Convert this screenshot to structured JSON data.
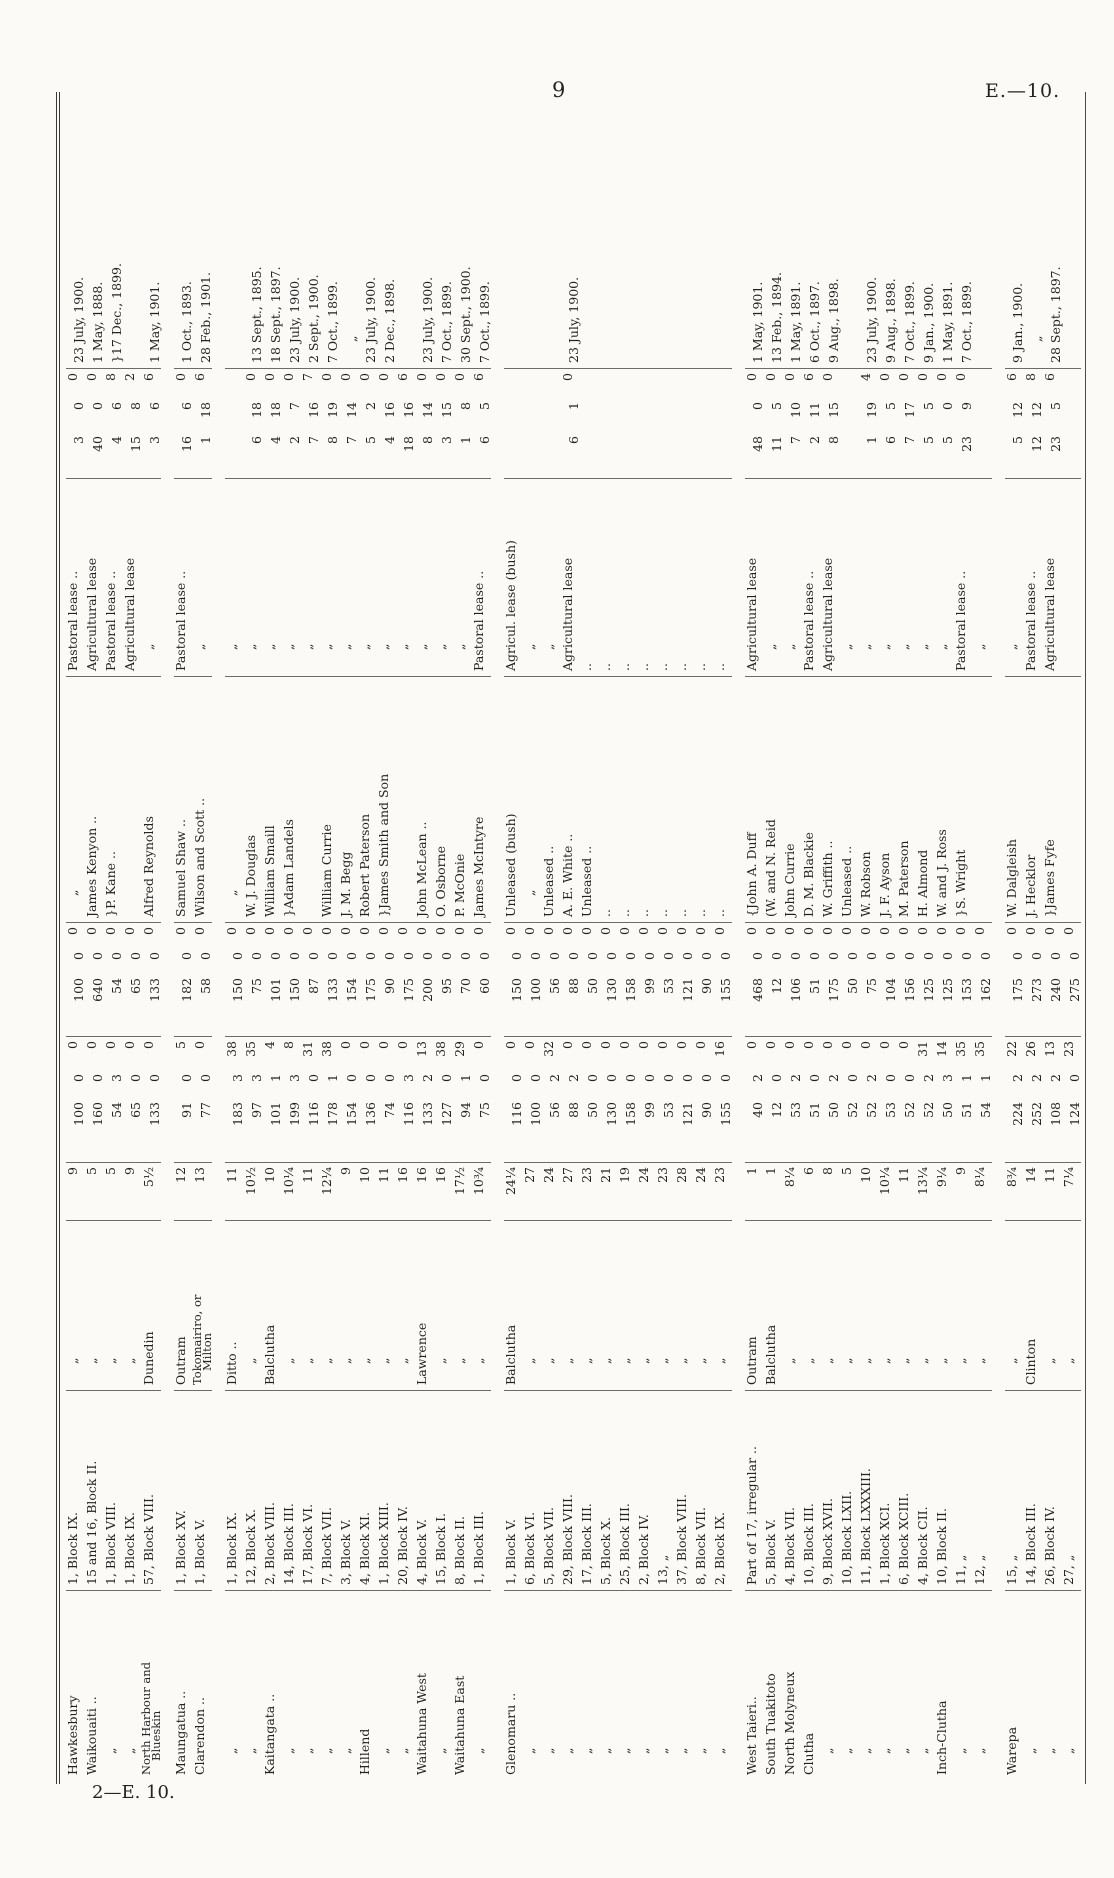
{
  "meta": {
    "page_number": "9",
    "doc_code": "E.—10.",
    "signature_line": "2—E. 10."
  },
  "table": {
    "rows": [
      {
        "d": "Hawkesbury",
        "s": "1, Block IX.",
        "l": "„",
        "di": "9",
        "aa": "100",
        "ar": "0",
        "ap": "0",
        "va": "100",
        "vs": "0",
        "vd": "0",
        "n": "„",
        "t": "Pastoral lease ..",
        "rl": "3",
        "rs": "0",
        "rd": "0",
        "dt": "23 July, 1900.",
        "gap": false
      },
      {
        "d": "Waikouaiti ..",
        "s": "15 and 16, Block II.",
        "l": "„",
        "di": "5",
        "aa": "160",
        "ar": "0",
        "ap": "0",
        "va": "640",
        "vs": "0",
        "vd": "0",
        "n": "James Kenyon ..",
        "t": "Agricultural lease",
        "rl": "40",
        "rs": "0",
        "rd": "0",
        "dt": "1 May, 1888.",
        "gap": false
      },
      {
        "d": "„",
        "s": "1, Block VIII.",
        "l": "„",
        "di": "5",
        "aa": "54",
        "ar": "3",
        "ap": "0",
        "va": "54",
        "vs": "0",
        "vd": "0",
        "n": "}P. Kane ..",
        "t": "Pastoral lease ..",
        "rl": "4",
        "rs": "6",
        "rd": "8",
        "dt": "}17 Dec., 1899.",
        "gap": false
      },
      {
        "d": "„",
        "s": "1, Block IX.",
        "l": "„",
        "di": "9",
        "aa": "65",
        "ar": "0",
        "ap": "0",
        "va": "65",
        "vs": "0",
        "vd": "0",
        "n": "",
        "t": "Agricultural lease",
        "rl": "15",
        "rs": "8",
        "rd": "2",
        "dt": "",
        "gap": false
      },
      {
        "d": "North Harbour and",
        "d2": "Blueskin",
        "s": "57, Block VIII.",
        "l": "Dunedin",
        "di": "5½",
        "aa": "133",
        "ar": "0",
        "ap": "0",
        "va": "133",
        "vs": "0",
        "vd": "0",
        "n": "Alfred Reynolds",
        "t": "„",
        "rl": "3",
        "rs": "6",
        "rd": "6",
        "dt": "1 May, 1901.",
        "gap": true
      },
      {
        "d": "Maungatua ..",
        "s": "1, Block XV.",
        "l": "Outram",
        "di": "12",
        "aa": "91",
        "ar": "0",
        "ap": "5",
        "va": "182",
        "vs": "0",
        "vd": "0",
        "n": "Samuel Shaw ..",
        "t": "Pastoral lease ..",
        "rl": "16",
        "rs": "6",
        "rd": "0",
        "dt": "1 Oct., 1893.",
        "gap": false
      },
      {
        "d": "Clarendon ..",
        "s": "1, Block V.",
        "l": "Tokomairiro, or",
        "l2": "Milton",
        "di": "13",
        "aa": "77",
        "ar": "0",
        "ap": "0",
        "va": "58",
        "vs": "0",
        "vd": "0",
        "n": "Wilson and Scott ..",
        "t": "„",
        "rl": "1",
        "rs": "18",
        "rd": "6",
        "dt": "28 Feb., 1901.",
        "gap": true
      },
      {
        "d": "„",
        "s": "1, Block IX.",
        "l": "Ditto ..",
        "di": "11",
        "aa": "183",
        "ar": "3",
        "ap": "38",
        "va": "150",
        "vs": "0",
        "vd": "0",
        "n": "„",
        "t": "„",
        "rl": "",
        "rs": "",
        "rd": "",
        "dt": "",
        "gap": false
      },
      {
        "d": "„",
        "s": "12, Block X.",
        "l": "„",
        "di": "10½",
        "aa": "97",
        "ar": "3",
        "ap": "35",
        "va": "75",
        "vs": "0",
        "vd": "0",
        "n": "W. J. Douglas",
        "t": "„",
        "rl": "6",
        "rs": "18",
        "rd": "0",
        "dt": "13 Sept., 1895.",
        "gap": false
      },
      {
        "d": "Kaitangata ..",
        "s": "2, Block VIII.",
        "l": "Balclutha",
        "di": "10",
        "aa": "101",
        "ar": "1",
        "ap": "4",
        "va": "101",
        "vs": "0",
        "vd": "0",
        "n": "William Smaill",
        "t": "„",
        "rl": "4",
        "rs": "18",
        "rd": "0",
        "dt": "18 Sept., 1897.",
        "gap": false
      },
      {
        "d": "„",
        "s": "14, Block III.",
        "l": "„",
        "di": "10¼",
        "aa": "199",
        "ar": "3",
        "ap": "8",
        "va": "150",
        "vs": "0",
        "vd": "0",
        "n": "}Adam Landels",
        "t": "„",
        "rl": "2",
        "rs": "7",
        "rd": "0",
        "dt": "23 July, 1900.",
        "gap": false
      },
      {
        "d": "„",
        "s": "17, Block VI.",
        "l": "„",
        "di": "11",
        "aa": "116",
        "ar": "0",
        "ap": "31",
        "va": "87",
        "vs": "0",
        "vd": "0",
        "n": "",
        "t": "„",
        "rl": "7",
        "rs": "16",
        "rd": "7",
        "dt": "2 Sept., 1900.",
        "gap": false
      },
      {
        "d": "„",
        "s": "7, Block VII.",
        "l": "„",
        "di": "12¼",
        "aa": "178",
        "ar": "1",
        "ap": "38",
        "va": "133",
        "vs": "0",
        "vd": "0",
        "n": "William Currie",
        "t": "„",
        "rl": "8",
        "rs": "19",
        "rd": "0",
        "dt": "7 Oct., 1899.",
        "gap": false
      },
      {
        "d": "„",
        "s": "3, Block V.",
        "l": "„",
        "di": "9",
        "aa": "154",
        "ar": "0",
        "ap": "0",
        "va": "154",
        "vs": "0",
        "vd": "0",
        "n": "J. M. Begg",
        "t": "„",
        "rl": "7",
        "rs": "14",
        "rd": "0",
        "dt": "„",
        "gap": false
      },
      {
        "d": "Hillend",
        "s": "4, Block XI.",
        "l": "„",
        "di": "10",
        "aa": "136",
        "ar": "0",
        "ap": "0",
        "va": "175",
        "vs": "0",
        "vd": "0",
        "n": "Robert Paterson",
        "t": "„",
        "rl": "5",
        "rs": "2",
        "rd": "0",
        "dt": "23 July, 1900.",
        "gap": false
      },
      {
        "d": "„",
        "s": "1, Block XIII.",
        "l": "„",
        "di": "11",
        "aa": "74",
        "ar": "0",
        "ap": "0",
        "va": "90",
        "vs": "0",
        "vd": "0",
        "n": "}James Smith and Son",
        "t": "„",
        "rl": "4",
        "rs": "16",
        "rd": "0",
        "dt": "2 Dec., 1898.",
        "gap": false
      },
      {
        "d": "„",
        "s": "20, Block IV.",
        "l": "„",
        "di": "16",
        "aa": "116",
        "ar": "3",
        "ap": "0",
        "va": "175",
        "vs": "0",
        "vd": "0",
        "n": "",
        "t": "„",
        "rl": "18",
        "rs": "16",
        "rd": "6",
        "dt": "",
        "gap": false
      },
      {
        "d": "Waitahuna West",
        "s": "4, Block V.",
        "l": "Lawrence",
        "di": "16",
        "aa": "133",
        "ar": "2",
        "ap": "13",
        "va": "200",
        "vs": "0",
        "vd": "0",
        "n": "John McLean ..",
        "t": "„",
        "rl": "8",
        "rs": "14",
        "rd": "0",
        "dt": "23 July, 1900.",
        "gap": false
      },
      {
        "d": "„",
        "s": "15, Block I.",
        "l": "„",
        "di": "16",
        "aa": "127",
        "ar": "0",
        "ap": "38",
        "va": "95",
        "vs": "0",
        "vd": "0",
        "n": "O. Osborne",
        "t": "„",
        "rl": "3",
        "rs": "15",
        "rd": "0",
        "dt": "7 Oct., 1899.",
        "gap": false
      },
      {
        "d": "Waitahuna East",
        "s": "8, Block II.",
        "l": "„",
        "di": "17½",
        "aa": "94",
        "ar": "1",
        "ap": "29",
        "va": "70",
        "vs": "0",
        "vd": "0",
        "n": "P. McOnie",
        "t": "„",
        "rl": "1",
        "rs": "8",
        "rd": "0",
        "dt": "30 Sept., 1900.",
        "gap": false
      },
      {
        "d": "„",
        "s": "1, Block III.",
        "l": "„",
        "di": "10¾",
        "aa": "75",
        "ar": "0",
        "ap": "0",
        "va": "60",
        "vs": "0",
        "vd": "0",
        "n": "James McIntyre",
        "t": "Pastoral lease ..",
        "rl": "6",
        "rs": "5",
        "rd": "6",
        "dt": "7 Oct., 1899.",
        "gap": true
      },
      {
        "d": "Glenomaru ..",
        "s": "1, Block V.",
        "l": "Balclutha",
        "di": "24¼",
        "aa": "116",
        "ar": "0",
        "ap": "0",
        "va": "150",
        "vs": "0",
        "vd": "0",
        "n": "Unleased (bush)",
        "t": "Agricul. lease (bush)",
        "rl": "",
        "rs": "",
        "rd": "",
        "dt": "",
        "gap": false
      },
      {
        "d": "„",
        "s": "6, Block VI.",
        "l": "„",
        "di": "27",
        "aa": "100",
        "ar": "0",
        "ap": "0",
        "va": "100",
        "vs": "0",
        "vd": "0",
        "n": "„",
        "t": "„",
        "rl": "",
        "rs": "",
        "rd": "",
        "dt": "",
        "gap": false
      },
      {
        "d": "„",
        "s": "5, Block VII.",
        "l": "„",
        "di": "24",
        "aa": "56",
        "ar": "2",
        "ap": "32",
        "va": "56",
        "vs": "0",
        "vd": "0",
        "n": "Unleased ..",
        "t": "„",
        "rl": "",
        "rs": "",
        "rd": "",
        "dt": "",
        "gap": false
      },
      {
        "d": "„",
        "s": "29, Block VIII.",
        "l": "„",
        "di": "27",
        "aa": "88",
        "ar": "2",
        "ap": "0",
        "va": "88",
        "vs": "0",
        "vd": "0",
        "n": "A. E. White ..",
        "t": "Agricultural lease",
        "rl": "6",
        "rs": "1",
        "rd": "0",
        "dt": "23 July, 1900.",
        "gap": false
      },
      {
        "d": "„",
        "s": "17, Block III.",
        "l": "„",
        "di": "23",
        "aa": "50",
        "ar": "0",
        "ap": "0",
        "va": "50",
        "vs": "0",
        "vd": "0",
        "n": "Unleased ..",
        "t": "..",
        "rl": "",
        "rs": "",
        "rd": "",
        "dt": "",
        "gap": false
      },
      {
        "d": "„",
        "s": "5, Block X.",
        "l": "„",
        "di": "21",
        "aa": "130",
        "ar": "0",
        "ap": "0",
        "va": "130",
        "vs": "0",
        "vd": "0",
        "n": "..",
        "t": "..",
        "rl": "",
        "rs": "",
        "rd": "",
        "dt": "",
        "gap": false
      },
      {
        "d": "„",
        "s": "25, Block III.",
        "l": "„",
        "di": "19",
        "aa": "158",
        "ar": "0",
        "ap": "0",
        "va": "158",
        "vs": "0",
        "vd": "0",
        "n": "..",
        "t": "..",
        "rl": "",
        "rs": "",
        "rd": "",
        "dt": "",
        "gap": false
      },
      {
        "d": "„",
        "s": "2, Block IV.",
        "l": "„",
        "di": "24",
        "aa": "99",
        "ar": "0",
        "ap": "0",
        "va": "99",
        "vs": "0",
        "vd": "0",
        "n": "..",
        "t": "..",
        "rl": "",
        "rs": "",
        "rd": "",
        "dt": "",
        "gap": false
      },
      {
        "d": "„",
        "s": "13, „",
        "l": "„",
        "di": "23",
        "aa": "53",
        "ar": "0",
        "ap": "0",
        "va": "53",
        "vs": "0",
        "vd": "0",
        "n": "..",
        "t": "..",
        "rl": "",
        "rs": "",
        "rd": "",
        "dt": "",
        "gap": false
      },
      {
        "d": "„",
        "s": "37, Block VIII.",
        "l": "„",
        "di": "28",
        "aa": "121",
        "ar": "0",
        "ap": "0",
        "va": "121",
        "vs": "0",
        "vd": "0",
        "n": "..",
        "t": "..",
        "rl": "",
        "rs": "",
        "rd": "",
        "dt": "",
        "gap": false
      },
      {
        "d": "„",
        "s": "8, Block VII.",
        "l": "„",
        "di": "24",
        "aa": "90",
        "ar": "0",
        "ap": "0",
        "va": "90",
        "vs": "0",
        "vd": "0",
        "n": "..",
        "t": "..",
        "rl": "",
        "rs": "",
        "rd": "",
        "dt": "",
        "gap": false
      },
      {
        "d": "„",
        "s": "2, Block IX.",
        "l": "„",
        "di": "23",
        "aa": "155",
        "ar": "0",
        "ap": "16",
        "va": "155",
        "vs": "0",
        "vd": "0",
        "n": "..",
        "t": "..",
        "rl": "",
        "rs": "",
        "rd": "",
        "dt": "",
        "gap": true
      },
      {
        "d": "West Taieri..",
        "s": "Part of 17, irregular ..",
        "l": "Outram",
        "di": "1",
        "aa": "40",
        "ar": "2",
        "ap": "0",
        "va": "468",
        "vs": "0",
        "vd": "0",
        "n": "{John A. Duff",
        "t": "Agricultural lease",
        "rl": "48",
        "rs": "0",
        "rd": "0",
        "dt": "1 May, 1901.",
        "gap": false
      },
      {
        "d": "South Tuakitoto",
        "s": "5, Block V.",
        "l": "Balclutha",
        "di": "1",
        "aa": "12",
        "ar": "0",
        "ap": "0",
        "va": "12",
        "vs": "0",
        "vd": "0",
        "n": "(W. and N. Reid",
        "t": "„",
        "rl": "11",
        "rs": "5",
        "rd": "0",
        "dt": "13 Feb., 1894.",
        "gap": false
      },
      {
        "d": "North Molyneux",
        "s": "4, Block VII.",
        "l": "„",
        "di": "8¼",
        "aa": "53",
        "ar": "2",
        "ap": "0",
        "va": "106",
        "vs": "0",
        "vd": "0",
        "n": "John Currie",
        "t": "„",
        "rl": "7",
        "rs": "10",
        "rd": "0",
        "dt": "1 May, 1891.",
        "gap": false
      },
      {
        "d": "Clutha",
        "s": "10, Block III.",
        "l": "„",
        "di": "6",
        "aa": "51",
        "ar": "0",
        "ap": "0",
        "va": "51",
        "vs": "0",
        "vd": "0",
        "n": "D. M. Blackie",
        "t": "Pastoral lease ..",
        "rl": "2",
        "rs": "11",
        "rd": "6",
        "dt": "6 Oct., 1897.",
        "gap": false
      },
      {
        "d": "„",
        "s": "9, Block XVII.",
        "l": "„",
        "di": "8",
        "aa": "50",
        "ar": "2",
        "ap": "0",
        "va": "175",
        "vs": "0",
        "vd": "0",
        "n": "W. Griffith ..",
        "t": "Agricultural lease",
        "rl": "8",
        "rs": "15",
        "rd": "0",
        "dt": "9 Aug., 1898.",
        "gap": false
      },
      {
        "d": "„",
        "s": "10, Block LXII.",
        "l": "„",
        "di": "5",
        "aa": "52",
        "ar": "0",
        "ap": "0",
        "va": "50",
        "vs": "0",
        "vd": "0",
        "n": "Unleased ..",
        "t": "„",
        "rl": "",
        "rs": "",
        "rd": "",
        "dt": "",
        "gap": false
      },
      {
        "d": "„",
        "s": "11, Block LXXXIII.",
        "l": "„",
        "di": "10",
        "aa": "52",
        "ar": "2",
        "ap": "0",
        "va": "75",
        "vs": "0",
        "vd": "0",
        "n": "W. Robson",
        "t": "„",
        "rl": "1",
        "rs": "19",
        "rd": "4",
        "dt": "23 July, 1900.",
        "gap": false
      },
      {
        "d": "„",
        "s": "1, Block XCI.",
        "l": "„",
        "di": "10¼",
        "aa": "53",
        "ar": "0",
        "ap": "0",
        "va": "104",
        "vs": "0",
        "vd": "0",
        "n": "J. F. Ayson",
        "t": "„",
        "rl": "6",
        "rs": "5",
        "rd": "0",
        "dt": "9 Aug., 1898.",
        "gap": false
      },
      {
        "d": "„",
        "s": "6, Block XCIII.",
        "l": "„",
        "di": "11",
        "aa": "52",
        "ar": "0",
        "ap": "0",
        "va": "156",
        "vs": "0",
        "vd": "0",
        "n": "M. Paterson",
        "t": "„",
        "rl": "7",
        "rs": "17",
        "rd": "0",
        "dt": "7 Oct., 1899.",
        "gap": false
      },
      {
        "d": "„",
        "s": "4, Block CII.",
        "l": "„",
        "di": "13¼",
        "aa": "52",
        "ar": "2",
        "ap": "31",
        "va": "125",
        "vs": "0",
        "vd": "0",
        "n": "H. Almond",
        "t": "„",
        "rl": "5",
        "rs": "5",
        "rd": "0",
        "dt": "9 Jan., 1900.",
        "gap": false
      },
      {
        "d": "Inch-Clutha",
        "s": "10, Block II.",
        "l": "„",
        "di": "9¼",
        "aa": "50",
        "ar": "3",
        "ap": "14",
        "va": "125",
        "vs": "0",
        "vd": "0",
        "n": "W. and J. Ross",
        "t": "„",
        "rl": "5",
        "rs": "0",
        "rd": "0",
        "dt": "1 May, 1891.",
        "gap": false
      },
      {
        "d": "„",
        "s": "11, „",
        "l": "„",
        "di": "9",
        "aa": "51",
        "ar": "1",
        "ap": "35",
        "va": "153",
        "vs": "0",
        "vd": "0",
        "n": "}S. Wright",
        "t": "Pastoral lease ..",
        "rl": "23",
        "rs": "9",
        "rd": "0",
        "dt": "7 Oct., 1899.",
        "gap": false
      },
      {
        "d": "„",
        "s": "12, „",
        "l": "„",
        "di": "8¼",
        "aa": "54",
        "ar": "1",
        "ap": "35",
        "va": "162",
        "vs": "0",
        "vd": "0",
        "n": "",
        "t": "„",
        "rl": "",
        "rs": "",
        "rd": "",
        "dt": "",
        "gap": true
      },
      {
        "d": "Warepa",
        "s": "15, „",
        "l": "„",
        "di": "8¾",
        "aa": "224",
        "ar": "2",
        "ap": "22",
        "va": "175",
        "vs": "0",
        "vd": "0",
        "n": "W. Dalgleish",
        "t": "„",
        "rl": "5",
        "rs": "12",
        "rd": "6",
        "dt": "9 Jan., 1900.",
        "gap": false
      },
      {
        "d": "„",
        "s": "14, Block III.",
        "l": "Clinton",
        "di": "14",
        "aa": "252",
        "ar": "2",
        "ap": "26",
        "va": "273",
        "vs": "0",
        "vd": "0",
        "n": "J. Hecklor",
        "t": "Pastoral lease ..",
        "rl": "12",
        "rs": "12",
        "rd": "8",
        "dt": "„",
        "gap": false
      },
      {
        "d": "„",
        "s": "26, Block IV.",
        "l": "„",
        "di": "11",
        "aa": "108",
        "ar": "2",
        "ap": "13",
        "va": "240",
        "vs": "0",
        "vd": "0",
        "n": "}James Fyfe",
        "t": "Agricultural lease",
        "rl": "23",
        "rs": "5",
        "rd": "6",
        "dt": "28 Sept., 1897.",
        "gap": false
      },
      {
        "d": "„",
        "s": "27, „",
        "l": "„",
        "di": "7¼",
        "aa": "124",
        "ar": "0",
        "ap": "23",
        "va": "275",
        "vs": "0",
        "vd": "0",
        "n": "",
        "t": "",
        "rl": "",
        "rs": "",
        "rd": "",
        "dt": "",
        "gap": false
      }
    ]
  }
}
